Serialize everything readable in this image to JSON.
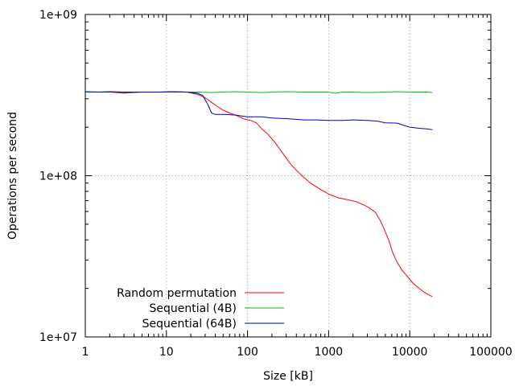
{
  "chart_data": {
    "type": "line",
    "title": "",
    "xlabel": "Size [kB]",
    "ylabel": "Operations per second",
    "x_scale": "log",
    "y_scale": "log",
    "xlim": [
      1,
      100000
    ],
    "ylim": [
      10000000,
      1000000000
    ],
    "x_ticks": [
      {
        "value": 1,
        "label": "1"
      },
      {
        "value": 10,
        "label": "10"
      },
      {
        "value": 100,
        "label": "100"
      },
      {
        "value": 1000,
        "label": "1000"
      },
      {
        "value": 10000,
        "label": "10000"
      },
      {
        "value": 100000,
        "label": "100000"
      }
    ],
    "y_ticks": [
      {
        "value": 10000000,
        "label": "1e+07"
      },
      {
        "value": 100000000,
        "label": "1e+08"
      },
      {
        "value": 1000000000,
        "label": "1e+09"
      }
    ],
    "grid": true,
    "legend_position": "bottom-left",
    "series": [
      {
        "name": "Random permutation",
        "color": "#ff0000",
        "points": [
          [
            1,
            330000000
          ],
          [
            1.5,
            330000000
          ],
          [
            2,
            330000000
          ],
          [
            3,
            325000000
          ],
          [
            5,
            330000000
          ],
          [
            8,
            330000000
          ],
          [
            12,
            330000000
          ],
          [
            18,
            330000000
          ],
          [
            24,
            320000000
          ],
          [
            30,
            305000000
          ],
          [
            36,
            285000000
          ],
          [
            42,
            270000000
          ],
          [
            50,
            255000000
          ],
          [
            60,
            245000000
          ],
          [
            75,
            235000000
          ],
          [
            90,
            225000000
          ],
          [
            110,
            220000000
          ],
          [
            130,
            212000000
          ],
          [
            150,
            195000000
          ],
          [
            180,
            180000000
          ],
          [
            220,
            160000000
          ],
          [
            280,
            135000000
          ],
          [
            350,
            116000000
          ],
          [
            450,
            102000000
          ],
          [
            600,
            90000000
          ],
          [
            800,
            82000000
          ],
          [
            1000,
            77000000
          ],
          [
            1300,
            73000000
          ],
          [
            1700,
            71000000
          ],
          [
            2200,
            69000000
          ],
          [
            2700,
            66000000
          ],
          [
            3200,
            63000000
          ],
          [
            3800,
            59000000
          ],
          [
            4300,
            53000000
          ],
          [
            4800,
            47000000
          ],
          [
            5500,
            40000000
          ],
          [
            6200,
            33000000
          ],
          [
            7000,
            29000000
          ],
          [
            8000,
            26000000
          ],
          [
            9500,
            23500000
          ],
          [
            11000,
            21500000
          ],
          [
            13000,
            20000000
          ],
          [
            15000,
            19000000
          ],
          [
            17000,
            18300000
          ],
          [
            19000,
            17800000
          ]
        ]
      },
      {
        "name": "Sequential (4B)",
        "color": "#00c000",
        "points": [
          [
            1,
            330000000
          ],
          [
            1.5,
            330000000
          ],
          [
            2,
            332000000
          ],
          [
            3,
            328000000
          ],
          [
            5,
            330000000
          ],
          [
            8,
            330000000
          ],
          [
            12,
            332000000
          ],
          [
            18,
            330000000
          ],
          [
            25,
            330000000
          ],
          [
            35,
            328000000
          ],
          [
            50,
            330000000
          ],
          [
            70,
            332000000
          ],
          [
            100,
            330000000
          ],
          [
            150,
            328000000
          ],
          [
            200,
            330000000
          ],
          [
            300,
            332000000
          ],
          [
            500,
            330000000
          ],
          [
            700,
            330000000
          ],
          [
            1000,
            330000000
          ],
          [
            1200,
            325000000
          ],
          [
            1500,
            330000000
          ],
          [
            2000,
            330000000
          ],
          [
            3000,
            328000000
          ],
          [
            5000,
            330000000
          ],
          [
            7000,
            332000000
          ],
          [
            10000,
            330000000
          ],
          [
            14000,
            330000000
          ],
          [
            17000,
            330000000
          ],
          [
            19000,
            328000000
          ]
        ]
      },
      {
        "name": "Sequential (64B)",
        "color": "#0000c0",
        "points": [
          [
            1,
            332000000
          ],
          [
            1.5,
            330000000
          ],
          [
            2,
            332000000
          ],
          [
            3,
            330000000
          ],
          [
            5,
            330000000
          ],
          [
            8,
            330000000
          ],
          [
            12,
            332000000
          ],
          [
            18,
            330000000
          ],
          [
            24,
            325000000
          ],
          [
            28,
            315000000
          ],
          [
            32,
            280000000
          ],
          [
            36,
            245000000
          ],
          [
            40,
            240000000
          ],
          [
            50,
            240000000
          ],
          [
            70,
            238000000
          ],
          [
            100,
            232000000
          ],
          [
            150,
            232000000
          ],
          [
            200,
            228000000
          ],
          [
            300,
            226000000
          ],
          [
            500,
            222000000
          ],
          [
            700,
            222000000
          ],
          [
            1000,
            220000000
          ],
          [
            1500,
            220000000
          ],
          [
            2000,
            222000000
          ],
          [
            3000,
            220000000
          ],
          [
            4000,
            218000000
          ],
          [
            5000,
            213000000
          ],
          [
            7000,
            212000000
          ],
          [
            8500,
            205000000
          ],
          [
            10000,
            200000000
          ],
          [
            13000,
            197000000
          ],
          [
            16000,
            195000000
          ],
          [
            19000,
            193000000
          ]
        ]
      }
    ]
  }
}
